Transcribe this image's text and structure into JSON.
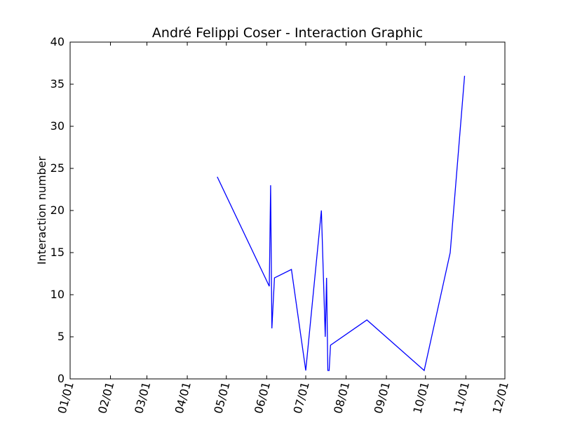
{
  "chart_data": {
    "type": "line",
    "title": "André Felippi Coser - Interaction Graphic",
    "xlabel": "",
    "ylabel": "Interaction number",
    "x_tick_labels": [
      "01/01",
      "02/01",
      "03/01",
      "04/01",
      "05/01",
      "06/01",
      "07/01",
      "08/01",
      "09/01",
      "10/01",
      "11/01",
      "12/01"
    ],
    "y_tick_labels": [
      "0",
      "5",
      "10",
      "15",
      "20",
      "25",
      "30",
      "35",
      "40"
    ],
    "ylim": [
      0,
      40
    ],
    "xlim": [
      "01/01",
      "12/01"
    ],
    "grid": false,
    "series": [
      {
        "color": "#0000ff",
        "x": [
          "04/24",
          "06/03",
          "06/04",
          "06/05",
          "06/07",
          "06/20",
          "07/01",
          "07/13",
          "07/16",
          "07/17",
          "07/18",
          "07/19",
          "07/20",
          "08/17",
          "09/30",
          "10/20",
          "10/31"
        ],
        "y": [
          24,
          11,
          23,
          6,
          12,
          13,
          1,
          20,
          5,
          12,
          1,
          1,
          4,
          7,
          1,
          15,
          36
        ]
      }
    ]
  }
}
